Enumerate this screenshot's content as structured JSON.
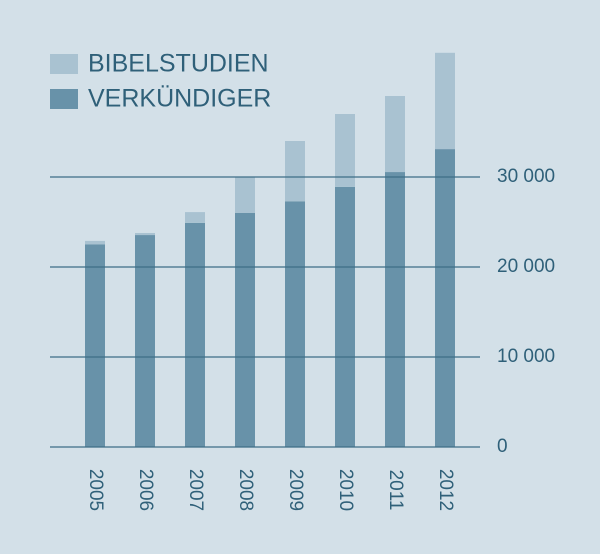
{
  "chart_data": {
    "type": "stacked_bar",
    "categories": [
      "2005",
      "2006",
      "2007",
      "2008",
      "2009",
      "2010",
      "2011",
      "2012"
    ],
    "series": [
      {
        "name": "VERKÜNDIGER",
        "color": "#6892a9",
        "values": [
          22500,
          23550,
          24900,
          26000,
          27300,
          28900,
          30550,
          33100
        ]
      },
      {
        "name": "BIBELSTUDIEN",
        "color": "#a9c2d1",
        "values": [
          400,
          230,
          1200,
          4000,
          6700,
          8100,
          8450,
          10700
        ]
      }
    ],
    "ylim": [
      0,
      44000
    ],
    "yticks": [
      0,
      {
        "value": 10000,
        "label": "10 000"
      },
      {
        "value": 20000,
        "label": "20 000"
      },
      {
        "value": 30000,
        "label": "30 000"
      }
    ],
    "grid": true,
    "legend": "top-left"
  }
}
